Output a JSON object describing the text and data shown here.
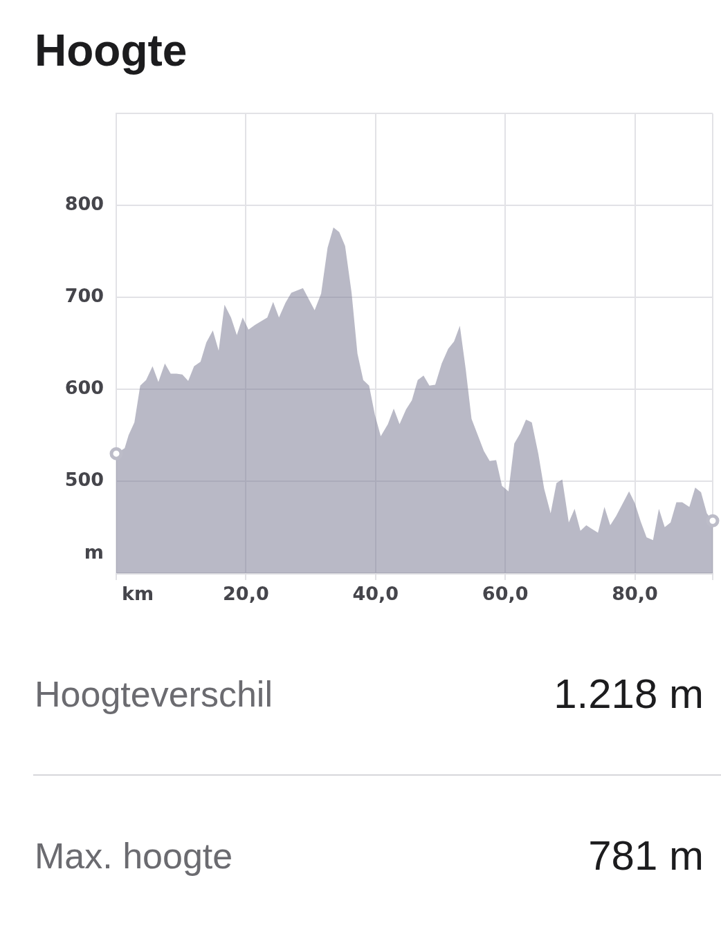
{
  "chart_data": {
    "type": "area",
    "title": "Hoogte",
    "xlabel": "km",
    "ylabel": "m",
    "x": [
      0,
      1.3,
      1.9,
      2.8,
      3.7,
      4.6,
      5.6,
      6.5,
      7.5,
      8.4,
      9.3,
      10.2,
      11.1,
      12.0,
      13.0,
      13.9,
      14.9,
      15.8,
      16.7,
      17.7,
      18.6,
      19.5,
      20.4,
      21.4,
      23.3,
      24.2,
      25.1,
      26.1,
      27.0,
      28.8,
      30.6,
      31.6,
      32.6,
      33.5,
      34.4,
      35.3,
      36.3,
      37.2,
      38.1,
      39.0,
      39.9,
      40.8,
      41.9,
      42.8,
      43.7,
      44.7,
      45.6,
      46.5,
      47.4,
      48.3,
      49.2,
      50.2,
      51.2,
      52.1,
      53.0,
      53.9,
      54.8,
      56.7,
      57.6,
      58.6,
      59.5,
      60.5,
      61.4,
      62.3,
      63.2,
      64.1,
      65.1,
      66.0,
      67.0,
      67.9,
      68.8,
      69.8,
      70.7,
      71.6,
      72.5,
      73.4,
      74.3,
      75.3,
      76.2,
      77.1,
      79.1,
      80.0,
      80.9,
      81.8,
      82.8,
      83.7,
      84.6,
      85.5,
      86.4,
      87.3,
      88.4,
      89.3,
      90.2,
      91.1,
      92.0
    ],
    "xlim": [
      0,
      92
    ],
    "xticks": [
      {
        "value": 0,
        "label": null
      },
      {
        "value": 20,
        "label": "20,0"
      },
      {
        "value": 40,
        "label": "40,0"
      },
      {
        "value": 60,
        "label": "60,0"
      },
      {
        "value": 80,
        "label": "80,0"
      },
      {
        "value": 92,
        "label": null
      }
    ],
    "ylim": [
      400,
      900
    ],
    "yticks": [
      {
        "value": 400,
        "label": null
      },
      500,
      600,
      700,
      800,
      {
        "value": 900,
        "label": null
      }
    ],
    "grid": true,
    "series": [
      {
        "color": "#b9b9c6",
        "values": [
          530,
          536,
          550,
          564,
          604,
          610,
          625,
          608,
          628,
          617,
          617,
          616,
          609,
          625,
          630,
          651,
          664,
          642,
          692,
          678,
          659,
          678,
          665,
          670,
          678,
          695,
          678,
          694,
          705,
          710,
          686,
          704,
          754,
          776,
          771,
          756,
          705,
          639,
          610,
          604,
          572,
          549,
          562,
          579,
          562,
          578,
          588,
          610,
          615,
          604,
          605,
          628,
          644,
          652,
          669,
          622,
          568,
          533,
          522,
          523,
          495,
          489,
          541,
          552,
          567,
          564,
          530,
          492,
          465,
          498,
          502,
          455,
          470,
          446,
          452,
          448,
          444,
          472,
          452,
          462,
          489,
          476,
          456,
          439,
          436,
          470,
          450,
          455,
          477,
          477,
          472,
          493,
          488,
          465,
          457
        ]
      },
      {
        "type": "scatter",
        "x": [
          0,
          92
        ],
        "values": [
          530,
          457
        ],
        "color": "#bcbcc8",
        "marker": "circle"
      }
    ],
    "annotations": [
      "Hoogteverschil",
      "1.218 m",
      "Max. hoogte",
      "781 m"
    ]
  }
}
